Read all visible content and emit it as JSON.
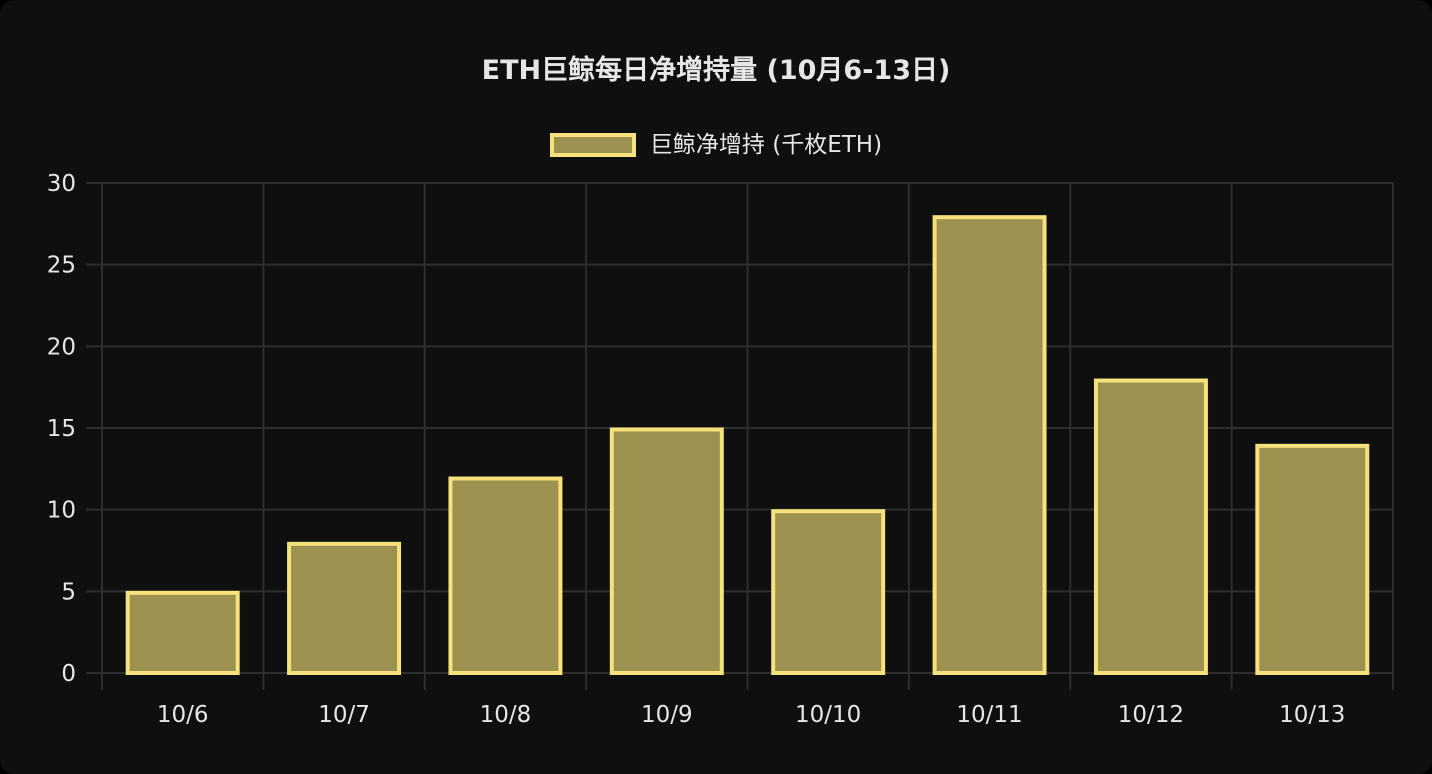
{
  "chart_data": {
    "type": "bar",
    "title": "ETH巨鲸每日净增持量 (10月6-13日)",
    "categories": [
      "10/6",
      "10/7",
      "10/8",
      "10/9",
      "10/10",
      "10/11",
      "10/12",
      "10/13"
    ],
    "series": [
      {
        "name": "巨鲸净增持 (千枚ETH)",
        "values": [
          5,
          8,
          12,
          15,
          10,
          28,
          18,
          14
        ]
      }
    ],
    "ylim": [
      0,
      30
    ],
    "yticks": [
      0,
      5,
      10,
      15,
      20,
      25,
      30
    ],
    "grid": true,
    "legend_position": "top-center",
    "colors": {
      "bar_fill": "#9d914f",
      "bar_border": "#f5e27c",
      "grid": "#2e2e2e",
      "text": "#e6e6e6",
      "background": "#0f0f0f"
    }
  }
}
